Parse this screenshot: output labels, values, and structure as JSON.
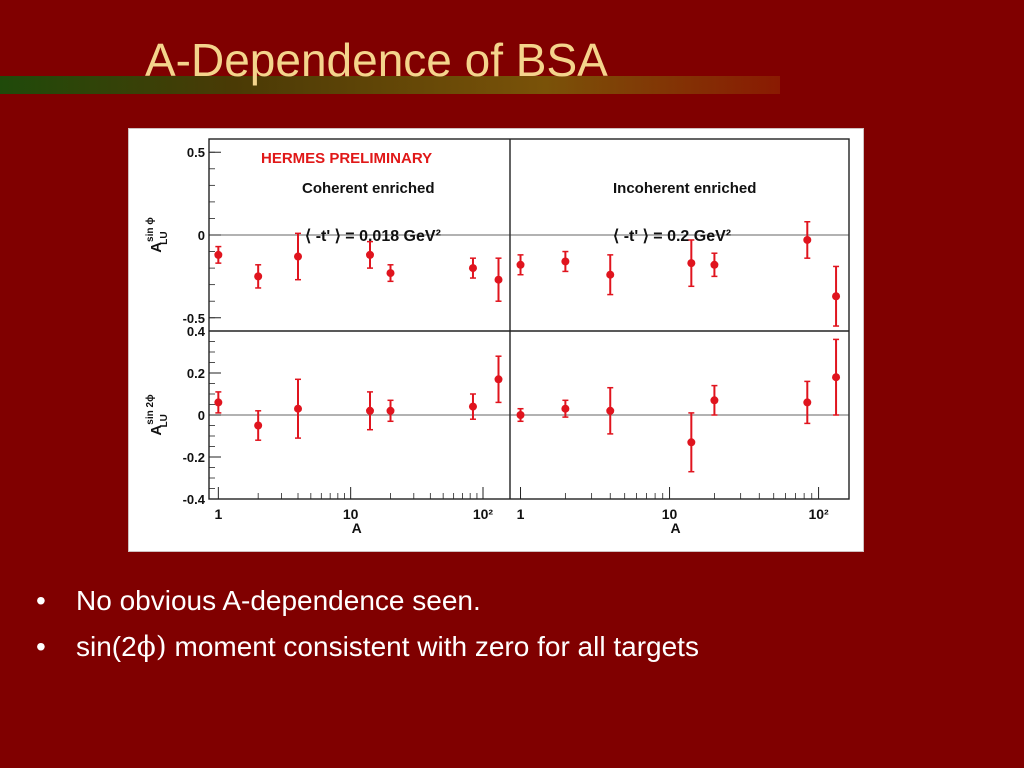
{
  "slide": {
    "title": "A-Dependence of BSA",
    "bullets": [
      {
        "marker": "•",
        "pre": "No obvious A-dependence seen.",
        "sym": "",
        "post": ""
      },
      {
        "marker": "•",
        "pre": "sin(2",
        "sym": "ϕ)",
        "post": " moment consistent with zero for all targets"
      }
    ]
  },
  "colors": {
    "background": "#800000",
    "title": "#f4d48c",
    "data": "#e0141e",
    "annotation_red": "#e01818"
  },
  "chart_data": {
    "type": "scatter",
    "banner": "HERMES PRELIMINARY",
    "xscale": "log",
    "xlim": [
      0.85,
      160
    ],
    "xticks": [
      "1",
      "10",
      "10²"
    ],
    "xlabel": "A",
    "grid": false,
    "columns": [
      {
        "title": "Coherent enriched",
        "t_label": "⟨ -t' ⟩ = 0.018 GeV²"
      },
      {
        "title": "Incoherent enriched",
        "t_label": "⟨ -t' ⟩ = 0.2 GeV²"
      }
    ],
    "rows": [
      {
        "ylabel_main": "A",
        "ylabel_sup": "sin ϕ",
        "ylabel_sub": "LU",
        "ylim": [
          -0.58,
          0.58
        ],
        "yticks": [
          "0.5",
          "0",
          "-0.5"
        ],
        "panels": [
          [
            {
              "A": 1,
              "y": -0.12,
              "err": 0.05
            },
            {
              "A": 2,
              "y": -0.25,
              "err": 0.07
            },
            {
              "A": 4,
              "y": -0.13,
              "err": 0.14
            },
            {
              "A": 14,
              "y": -0.12,
              "err": 0.08
            },
            {
              "A": 20,
              "y": -0.23,
              "err": 0.05
            },
            {
              "A": 84,
              "y": -0.2,
              "err": 0.06
            },
            {
              "A": 131,
              "y": -0.27,
              "err": 0.13
            }
          ],
          [
            {
              "A": 1,
              "y": -0.18,
              "err": 0.06
            },
            {
              "A": 2,
              "y": -0.16,
              "err": 0.06
            },
            {
              "A": 4,
              "y": -0.24,
              "err": 0.12
            },
            {
              "A": 14,
              "y": -0.17,
              "err": 0.14
            },
            {
              "A": 20,
              "y": -0.18,
              "err": 0.07
            },
            {
              "A": 84,
              "y": -0.03,
              "err": 0.11
            },
            {
              "A": 131,
              "y": -0.37,
              "err": 0.18
            }
          ]
        ]
      },
      {
        "ylabel_main": "A",
        "ylabel_sup": "sin 2ϕ",
        "ylabel_sub": "LU",
        "ylim": [
          -0.4,
          0.4
        ],
        "yticks": [
          "0.4",
          "0.2",
          "0",
          "-0.2",
          "-0.4"
        ],
        "panels": [
          [
            {
              "A": 1,
              "y": 0.06,
              "err": 0.05
            },
            {
              "A": 2,
              "y": -0.05,
              "err": 0.07
            },
            {
              "A": 4,
              "y": 0.03,
              "err": 0.14
            },
            {
              "A": 14,
              "y": 0.02,
              "err": 0.09
            },
            {
              "A": 20,
              "y": 0.02,
              "err": 0.05
            },
            {
              "A": 84,
              "y": 0.04,
              "err": 0.06
            },
            {
              "A": 131,
              "y": 0.17,
              "err": 0.11
            }
          ],
          [
            {
              "A": 1,
              "y": 0.0,
              "err": 0.03
            },
            {
              "A": 2,
              "y": 0.03,
              "err": 0.04
            },
            {
              "A": 4,
              "y": 0.02,
              "err": 0.11
            },
            {
              "A": 14,
              "y": -0.13,
              "err": 0.14
            },
            {
              "A": 20,
              "y": 0.07,
              "err": 0.07
            },
            {
              "A": 84,
              "y": 0.06,
              "err": 0.1
            },
            {
              "A": 131,
              "y": 0.18,
              "err": 0.18
            }
          ]
        ]
      }
    ]
  }
}
